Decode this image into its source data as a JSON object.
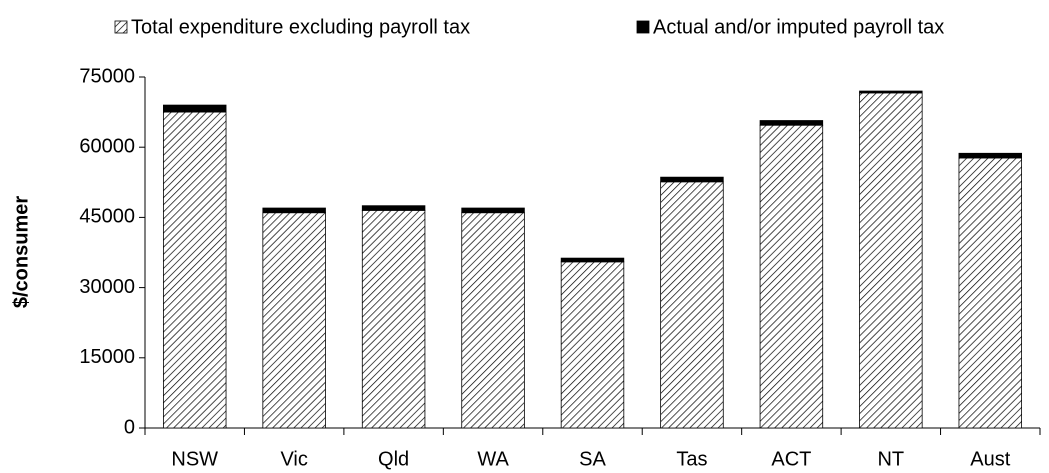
{
  "chart_data": {
    "type": "stacked-bar",
    "y_label": "$/consumer",
    "categories": [
      "NSW",
      "Vic",
      "Qld",
      "WA",
      "SA",
      "Tas",
      "ACT",
      "NT",
      "Aust"
    ],
    "series": [
      {
        "name": "Total expenditure excluding payroll tax",
        "color": "#000000",
        "hatch": true,
        "values": [
          67500,
          46000,
          46500,
          46000,
          35500,
          52600,
          64700,
          71600,
          57700
        ]
      },
      {
        "name": "Actual and/or imputed payroll tax",
        "color": "#000000",
        "hatch": false,
        "values": [
          1500,
          1000,
          1000,
          1000,
          800,
          1000,
          1000,
          400,
          1000
        ]
      }
    ],
    "ylim": [
      0,
      75000
    ],
    "yticks": [
      0,
      15000,
      30000,
      45000,
      60000,
      75000
    ],
    "grid": false,
    "legend": "top"
  }
}
